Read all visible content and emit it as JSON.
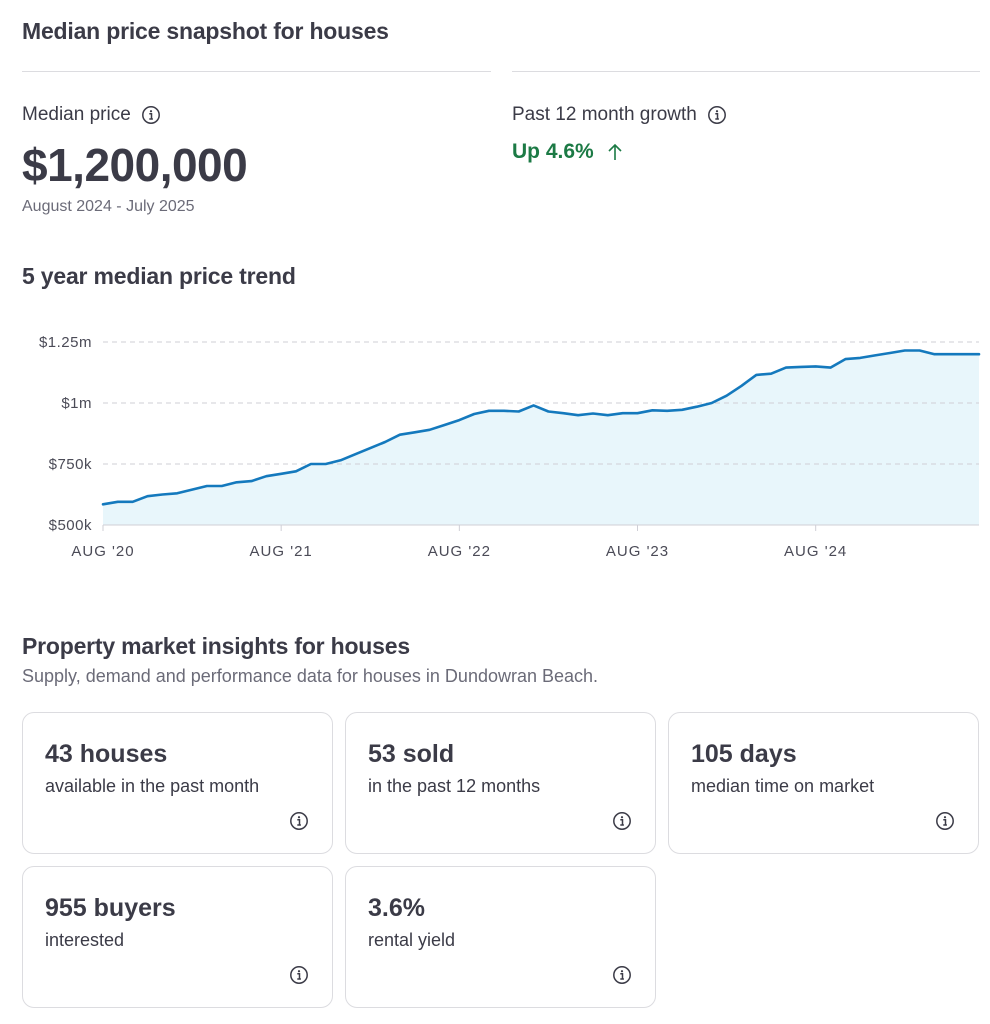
{
  "snapshot": {
    "title": "Median price snapshot for houses",
    "median_label": "Median price",
    "median_value": "$1,200,000",
    "median_range": "August 2024 - July 2025",
    "growth_label": "Past 12 month growth",
    "growth_value": "Up 4.6%"
  },
  "trend": {
    "title": "5 year median price trend"
  },
  "chart_data": {
    "type": "area",
    "title": "5 year median price trend",
    "xlabel": "",
    "ylabel": "",
    "ylim": [
      500000,
      1250000
    ],
    "y_ticks": [
      {
        "value": 1250000,
        "label": "$1.25m"
      },
      {
        "value": 1000000,
        "label": "$1m"
      },
      {
        "value": 750000,
        "label": "$750k"
      },
      {
        "value": 500000,
        "label": "$500k"
      }
    ],
    "x_ticks": [
      {
        "value": 0,
        "label": "AUG '20"
      },
      {
        "value": 12,
        "label": "AUG '21"
      },
      {
        "value": 24,
        "label": "AUG '22"
      },
      {
        "value": 36,
        "label": "AUG '23"
      },
      {
        "value": 48,
        "label": "AUG '24"
      }
    ],
    "xlim": [
      0,
      59
    ],
    "grid": true,
    "series": [
      {
        "values": [
          585000,
          595000,
          595000,
          618000,
          625000,
          630000,
          645000,
          660000,
          660000,
          675000,
          680000,
          700000,
          710000,
          720000,
          750000,
          750000,
          765000,
          790000,
          815000,
          840000,
          870000,
          880000,
          890000,
          910000,
          930000,
          955000,
          968000,
          968000,
          965000,
          990000,
          965000,
          958000,
          950000,
          957000,
          950000,
          958000,
          958000,
          970000,
          968000,
          972000,
          985000,
          1000000,
          1030000,
          1070000,
          1115000,
          1120000,
          1145000,
          1148000,
          1150000,
          1145000,
          1180000,
          1185000,
          1195000,
          1205000,
          1215000,
          1215000,
          1200000,
          1200000,
          1200000,
          1200000
        ]
      }
    ],
    "colors": {
      "line": "#1479bd",
      "fill": "#e8f6fb",
      "grid": "#cfcfd6",
      "axis_text": "#4b4b57"
    }
  },
  "insights": {
    "title": "Property market insights for houses",
    "subtitle": "Supply, demand and performance data for houses in Dundowran Beach.",
    "cards": [
      {
        "value": "43 houses",
        "desc": "available in the past month"
      },
      {
        "value": "53 sold",
        "desc": "in the past 12 months"
      },
      {
        "value": "105 days",
        "desc": "median time on market"
      },
      {
        "value": "955 buyers",
        "desc": "interested"
      },
      {
        "value": "3.6%",
        "desc": "rental yield"
      }
    ]
  },
  "icons": {
    "info": "info-icon",
    "growth_arrow": "arrow-up-icon"
  },
  "colors": {
    "text": "#3b3b47",
    "muted": "#6b6b78",
    "growth": "#1c7a45",
    "border": "#dcdce0"
  }
}
